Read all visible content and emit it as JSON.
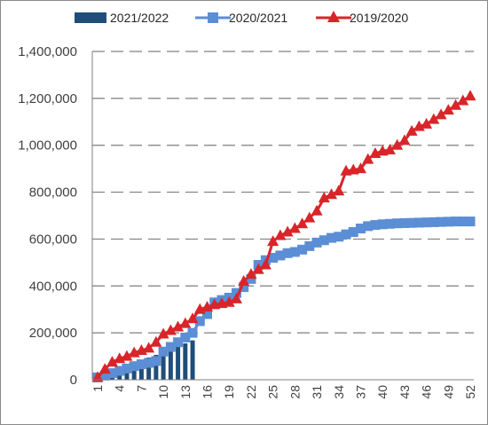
{
  "chart_data": {
    "type": "line",
    "title": "",
    "xlabel": "",
    "ylabel": "",
    "ylim": [
      0,
      1400000
    ],
    "xlim": [
      1,
      52
    ],
    "grid": true,
    "legend_position": "top",
    "y_tick_labels": [
      "0",
      "200,000",
      "400,000",
      "600,000",
      "800,000",
      "1,000,000",
      "1,200,000",
      "1,400,000"
    ],
    "y_tick_values": [
      0,
      200000,
      400000,
      600000,
      800000,
      1000000,
      1200000,
      1400000
    ],
    "x_tick_labels": [
      "1",
      "4",
      "7",
      "10",
      "13",
      "16",
      "19",
      "22",
      "25",
      "28",
      "31",
      "34",
      "37",
      "40",
      "43",
      "46",
      "49",
      "52"
    ],
    "x_tick_values": [
      1,
      4,
      7,
      10,
      13,
      16,
      19,
      22,
      25,
      28,
      31,
      34,
      37,
      40,
      43,
      46,
      49,
      52
    ],
    "x": [
      1,
      2,
      3,
      4,
      5,
      6,
      7,
      8,
      9,
      10,
      11,
      12,
      13,
      14,
      15,
      16,
      17,
      18,
      19,
      20,
      21,
      22,
      23,
      24,
      25,
      26,
      27,
      28,
      29,
      30,
      31,
      32,
      33,
      34,
      35,
      36,
      37,
      38,
      39,
      40,
      41,
      42,
      43,
      44,
      45,
      46,
      47,
      48,
      49,
      50,
      51,
      52
    ],
    "series": [
      {
        "name": "2021/2022",
        "kind": "bar",
        "color": "#1f4e79",
        "x": [
          1,
          2,
          3,
          4,
          5,
          6,
          7,
          8,
          9,
          10,
          11,
          12,
          13,
          14
        ],
        "values": [
          10000,
          22000,
          35000,
          48000,
          60000,
          72000,
          83000,
          95000,
          106000,
          118000,
          130000,
          142000,
          155000,
          168000
        ]
      },
      {
        "name": "2020/2021",
        "kind": "line",
        "marker": "square",
        "color": "#5b8ed4",
        "values": [
          10000,
          18000,
          28000,
          38000,
          48000,
          58000,
          66000,
          72000,
          80000,
          120000,
          140000,
          160000,
          180000,
          200000,
          250000,
          280000,
          330000,
          340000,
          350000,
          370000,
          395000,
          430000,
          490000,
          510000,
          520000,
          530000,
          540000,
          545000,
          555000,
          570000,
          585000,
          595000,
          605000,
          610000,
          620000,
          630000,
          645000,
          655000,
          660000,
          663000,
          665000,
          667000,
          668000,
          669000,
          670000,
          671000,
          672000,
          673000,
          674000,
          675000,
          675000,
          675000
        ]
      },
      {
        "name": "2019/2020",
        "kind": "line",
        "marker": "triangle",
        "color": "#d9252a",
        "values": [
          10000,
          45000,
          75000,
          90000,
          100000,
          115000,
          125000,
          135000,
          160000,
          195000,
          210000,
          225000,
          240000,
          260000,
          300000,
          310000,
          320000,
          325000,
          330000,
          345000,
          420000,
          450000,
          470000,
          490000,
          590000,
          615000,
          630000,
          645000,
          665000,
          690000,
          720000,
          775000,
          790000,
          805000,
          890000,
          895000,
          900000,
          940000,
          965000,
          975000,
          980000,
          1000000,
          1020000,
          1060000,
          1080000,
          1090000,
          1110000,
          1130000,
          1150000,
          1170000,
          1190000,
          1210000
        ]
      }
    ]
  }
}
